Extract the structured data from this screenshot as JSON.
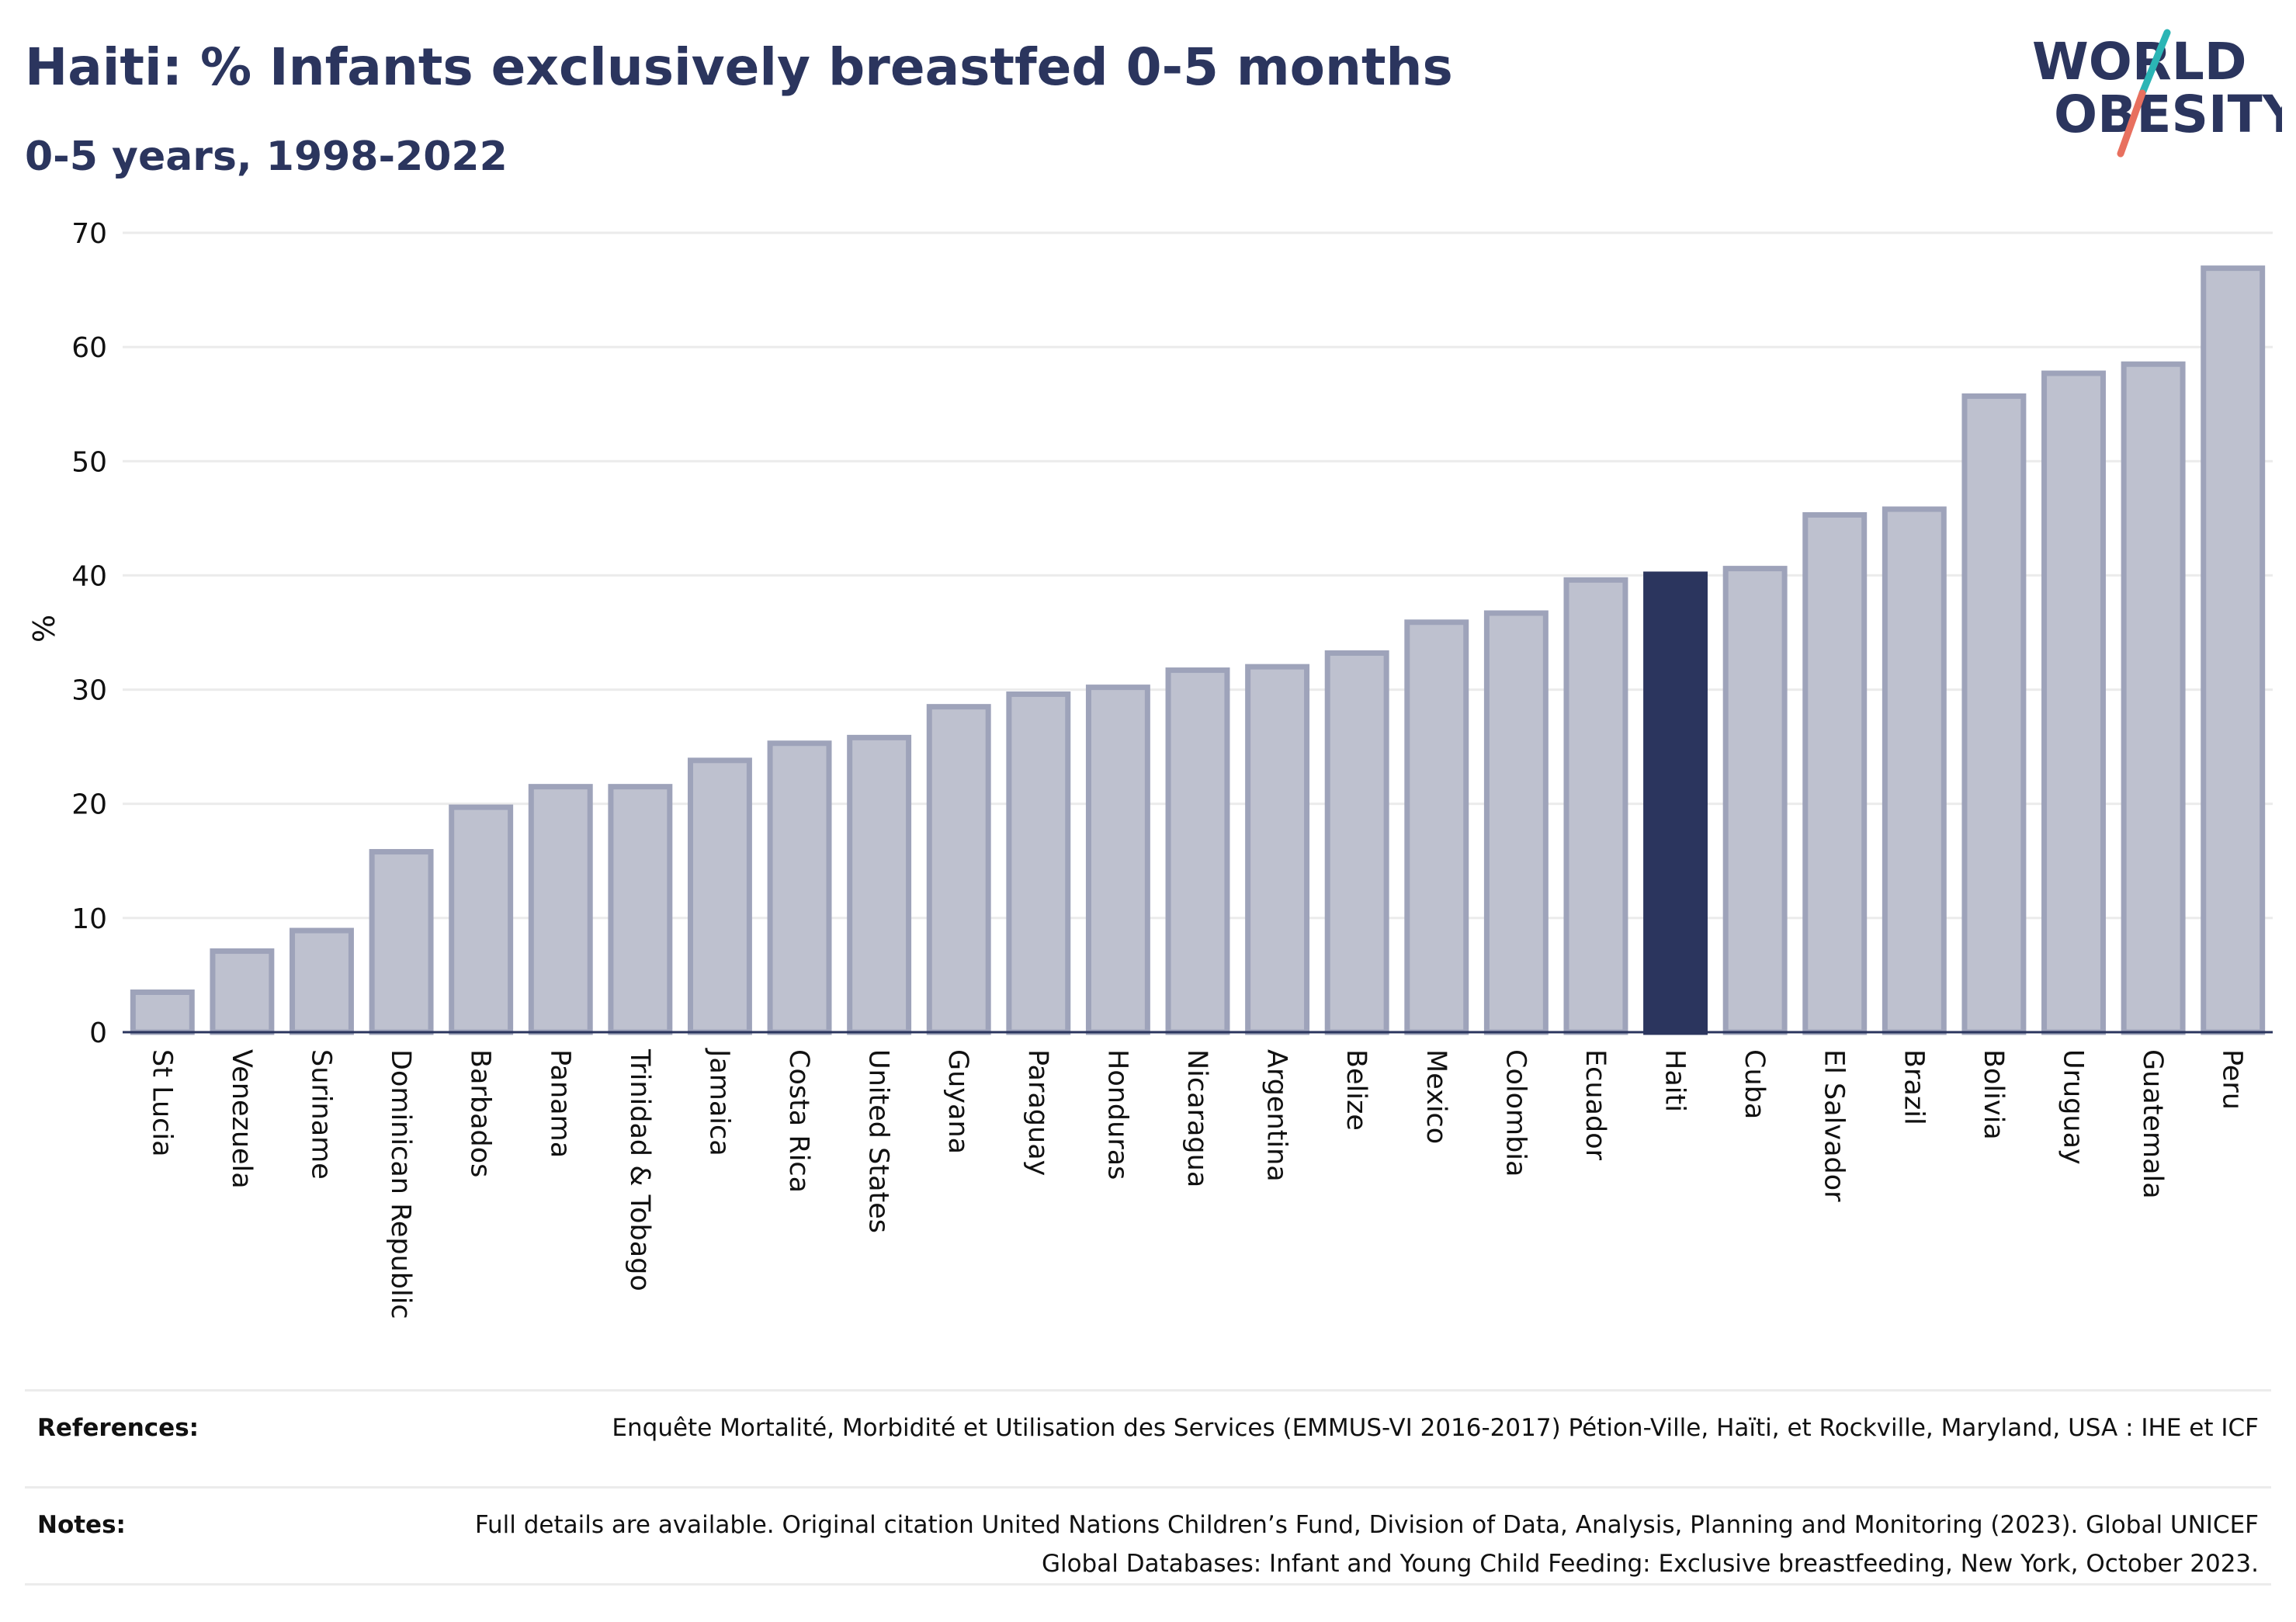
{
  "title": "Haiti: % Infants exclusively breastfed 0-5 months",
  "subtitle": "0-5 years, 1998-2022",
  "logo": {
    "line1": "WORLD",
    "line2": "OBESITY"
  },
  "colors": {
    "title": "#2b355e",
    "bar_default": "#bec1cf",
    "bar_border": "#9ea3ba",
    "bar_highlight": "#2b355e",
    "gridline": "#ebebeb",
    "axis": "#2b355e",
    "logo_teal": "#2bb5b5",
    "logo_coral": "#e8705f"
  },
  "chart_data": {
    "type": "bar",
    "title": "Haiti: % Infants exclusively breastfed 0-5 months",
    "subtitle": "0-5 years, 1998-2022",
    "xlabel": "",
    "ylabel": "%",
    "ylim": [
      0,
      70
    ],
    "yticks": [
      0,
      10,
      20,
      30,
      40,
      50,
      60,
      70
    ],
    "grid": true,
    "highlight": "Haiti",
    "categories": [
      "St Lucia",
      "Venezuela",
      "Suriname",
      "Dominican Republic",
      "Barbados",
      "Panama",
      "Trinidad & Tobago",
      "Jamaica",
      "Costa Rica",
      "United States",
      "Guyana",
      "Paraguay",
      "Honduras",
      "Nicaragua",
      "Argentina",
      "Belize",
      "Mexico",
      "Colombia",
      "Ecuador",
      "Haiti",
      "Cuba",
      "El Salvador",
      "Brazil",
      "Bolivia",
      "Uruguay",
      "Guatemala",
      "Peru"
    ],
    "values": [
      3.5,
      7.1,
      8.9,
      15.8,
      19.7,
      21.5,
      21.5,
      23.8,
      25.3,
      25.8,
      28.5,
      29.6,
      30.2,
      31.7,
      32.0,
      33.2,
      35.9,
      36.7,
      39.6,
      40.1,
      40.6,
      45.3,
      45.8,
      55.7,
      57.7,
      58.5,
      66.9
    ]
  },
  "footer": {
    "references_label": "References:",
    "references_text": "Enquête Mortalité, Morbidité et Utilisation des Services (EMMUS-VI 2016-2017) Pétion-Ville, Haïti, et Rockville, Maryland, USA : IHE et ICF",
    "notes_label": "Notes:",
    "notes_text": "Full details are available. Original citation United Nations Children’s Fund, Division of Data, Analysis, Planning and Monitoring (2023). Global UNICEF Global Databases: Infant and Young Child Feeding: Exclusive breastfeeding, New York, October 2023."
  }
}
